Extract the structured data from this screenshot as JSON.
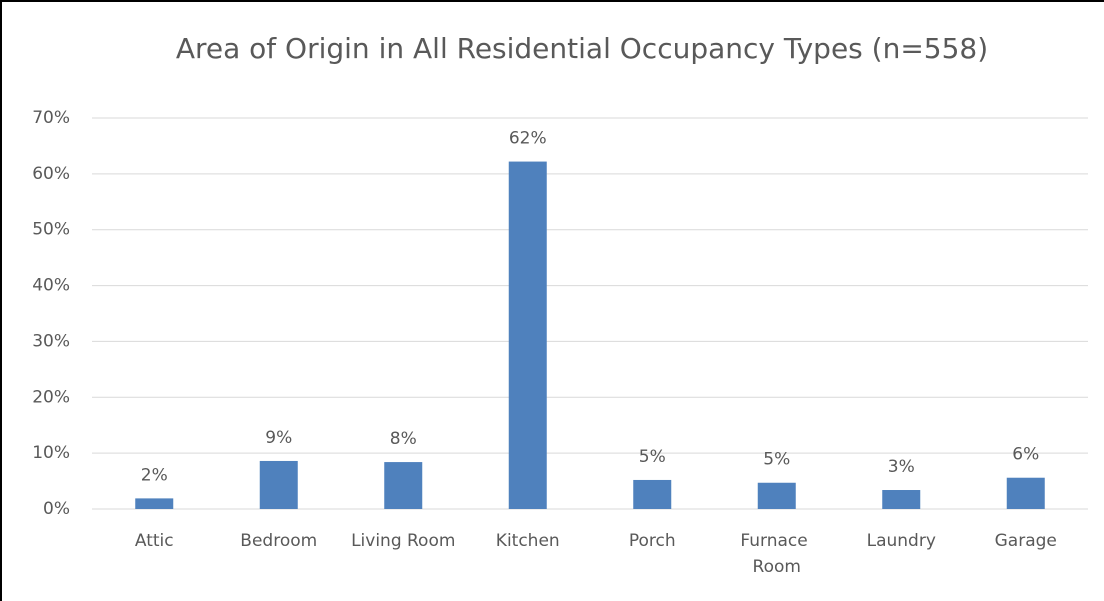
{
  "chart_data": {
    "type": "bar",
    "title": "Area of Origin in All Residential Occupancy Types (n=558)",
    "categories": [
      "Attic",
      "Bedroom",
      "Living Room",
      "Kitchen",
      "Porch",
      "Furnace Room",
      "Laundry",
      "Garage"
    ],
    "values": [
      1.9,
      8.6,
      8.4,
      62.2,
      5.2,
      4.7,
      3.4,
      5.6
    ],
    "value_labels": [
      "2%",
      "9%",
      "8%",
      "62%",
      "5%",
      "5%",
      "3%",
      "6%"
    ],
    "color": "#4f81bd",
    "ylim": [
      0,
      70
    ],
    "yticks": [
      {
        "value": 0,
        "label": "0%"
      },
      {
        "value": 10,
        "label": "10%"
      },
      {
        "value": 20,
        "label": "20%"
      },
      {
        "value": 30,
        "label": "30%"
      },
      {
        "value": 40,
        "label": "40%"
      },
      {
        "value": 50,
        "label": "50%"
      },
      {
        "value": 60,
        "label": "60%"
      },
      {
        "value": 70,
        "label": "70%"
      }
    ],
    "grid": true
  }
}
